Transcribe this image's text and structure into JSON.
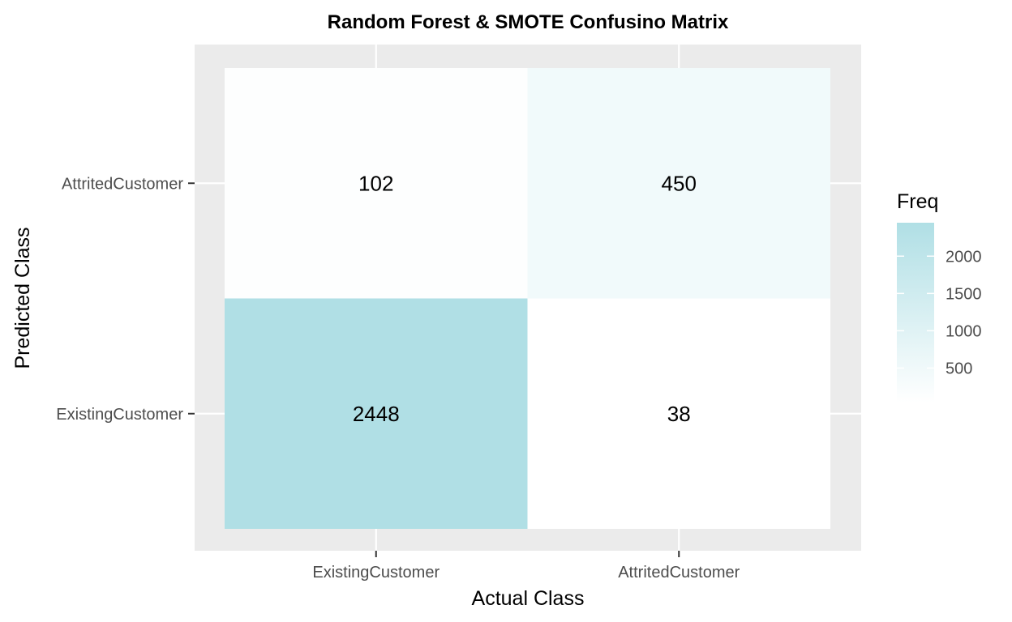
{
  "chart_data": {
    "type": "heatmap",
    "title": "Random Forest & SMOTE Confusino Matrix",
    "xlabel": "Actual Class",
    "ylabel": "Predicted Class",
    "x_categories": [
      "ExistingCustomer",
      "AttritedCustomer"
    ],
    "y_categories": [
      "AttritedCustomer",
      "ExistingCustomer"
    ],
    "cells": [
      {
        "x": "ExistingCustomer",
        "y": "AttritedCustomer",
        "value": 102,
        "label": "102"
      },
      {
        "x": "AttritedCustomer",
        "y": "AttritedCustomer",
        "value": 450,
        "label": "450"
      },
      {
        "x": "ExistingCustomer",
        "y": "ExistingCustomer",
        "value": 2448,
        "label": "2448"
      },
      {
        "x": "AttritedCustomer",
        "y": "ExistingCustomer",
        "value": 38,
        "label": "38"
      }
    ],
    "legend": {
      "title": "Freq",
      "placement": "right",
      "range": [
        38,
        2448
      ],
      "ticks": [
        500,
        1000,
        1500,
        2000
      ],
      "tick_labels": [
        "500",
        "1000",
        "1500",
        "2000"
      ],
      "color_low": "#ffffff",
      "color_high": "#b0dfe5"
    },
    "panel_background": "#ebebeb",
    "grid": true
  }
}
